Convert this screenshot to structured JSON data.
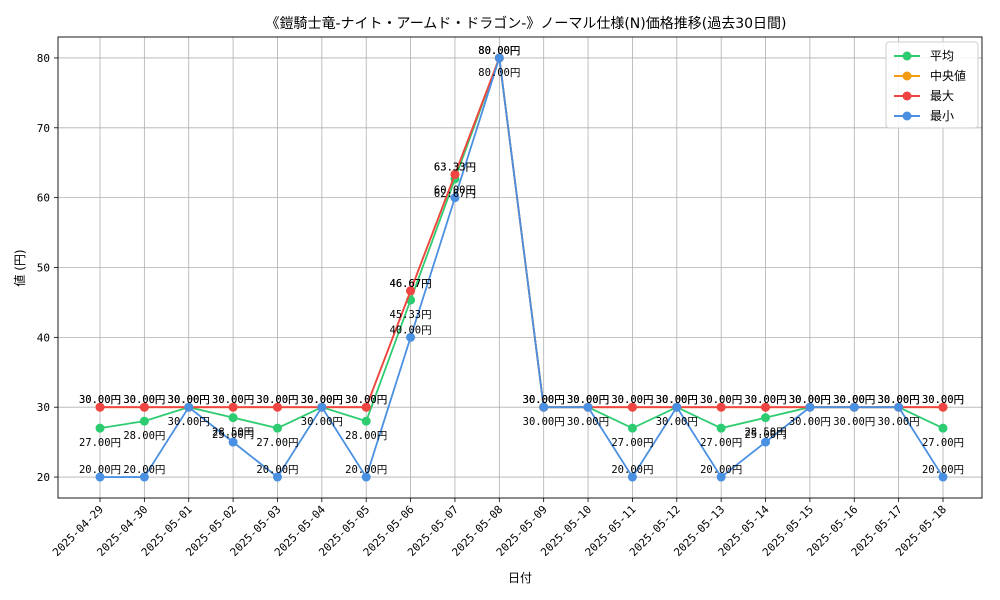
{
  "chart_data": {
    "type": "line",
    "title": "《鎧騎士竜-ナイト・アームド・ドラゴン-》ノーマル仕様(N)価格推移(過去30日間)",
    "xlabel": "日付",
    "ylabel": "値 (円)",
    "ylim": [
      17,
      83
    ],
    "yticks": [
      20,
      30,
      40,
      50,
      60,
      70,
      80
    ],
    "grid": true,
    "legend_position": "top-right",
    "value_suffix": "円",
    "categories": [
      "2025-04-29",
      "2025-04-30",
      "2025-05-01",
      "2025-05-02",
      "2025-05-03",
      "2025-05-04",
      "2025-05-05",
      "2025-05-06",
      "2025-05-07",
      "2025-05-08",
      "2025-05-09",
      "2025-05-10",
      "2025-05-11",
      "2025-05-12",
      "2025-05-13",
      "2025-05-14",
      "2025-05-15",
      "2025-05-16",
      "2025-05-17",
      "2025-05-18"
    ],
    "series": [
      {
        "name": "平均",
        "color": "#2ecc71",
        "values": [
          27.0,
          28.0,
          30.0,
          28.5,
          27.0,
          30.0,
          28.0,
          45.33,
          62.67,
          80.0,
          30.0,
          30.0,
          27.0,
          30.0,
          27.0,
          28.5,
          30.0,
          30.0,
          30.0,
          27.0
        ]
      },
      {
        "name": "中央値",
        "color": "#f39c12",
        "values": [
          30.0,
          30.0,
          30.0,
          30.0,
          30.0,
          30.0,
          30.0,
          46.67,
          63.33,
          80.0,
          30.0,
          30.0,
          30.0,
          30.0,
          30.0,
          30.0,
          30.0,
          30.0,
          30.0,
          30.0
        ]
      },
      {
        "name": "最大",
        "color": "#ef4444",
        "values": [
          30.0,
          30.0,
          30.0,
          30.0,
          30.0,
          30.0,
          30.0,
          46.67,
          63.33,
          80.0,
          30.0,
          30.0,
          30.0,
          30.0,
          30.0,
          30.0,
          30.0,
          30.0,
          30.0,
          30.0
        ]
      },
      {
        "name": "最小",
        "color": "#4a90e2",
        "values": [
          20.0,
          20.0,
          30.0,
          25.0,
          20.0,
          30.0,
          20.0,
          40.0,
          60.0,
          80.0,
          30.0,
          30.0,
          20.0,
          30.0,
          20.0,
          25.0,
          30.0,
          30.0,
          30.0,
          20.0
        ]
      }
    ]
  }
}
